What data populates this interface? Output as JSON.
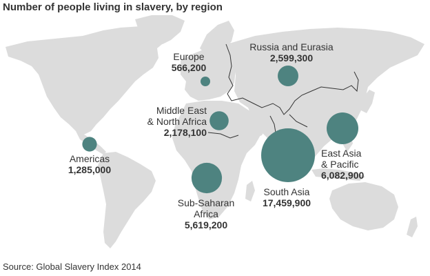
{
  "title": "Number of people living in slavery, by region",
  "source": "Source: Global Slavery Index 2014",
  "colors": {
    "land": "#dcdcdc",
    "bubble": "#4e8380",
    "border": "#333333"
  },
  "regions": [
    {
      "id": "americas",
      "name_lines": [
        "Americas"
      ],
      "value_text": "1,285,000",
      "value": 1285000
    },
    {
      "id": "europe",
      "name_lines": [
        "Europe"
      ],
      "value_text": "566,200",
      "value": 566200
    },
    {
      "id": "russia",
      "name_lines": [
        "Russia and Eurasia"
      ],
      "value_text": "2,599,300",
      "value": 2599300
    },
    {
      "id": "mena",
      "name_lines": [
        "Middle East",
        "& North Africa"
      ],
      "value_text": "2,178,100",
      "value": 2178100
    },
    {
      "id": "ssa",
      "name_lines": [
        "Sub-Saharan",
        "Africa"
      ],
      "value_text": "5,619,200",
      "value": 5619200
    },
    {
      "id": "southasia",
      "name_lines": [
        "South Asia"
      ],
      "value_text": "17,459,900",
      "value": 17459900
    },
    {
      "id": "eastasia",
      "name_lines": [
        "East Asia",
        "& Pacific"
      ],
      "value_text": "6,082,900",
      "value": 6082900
    }
  ]
}
